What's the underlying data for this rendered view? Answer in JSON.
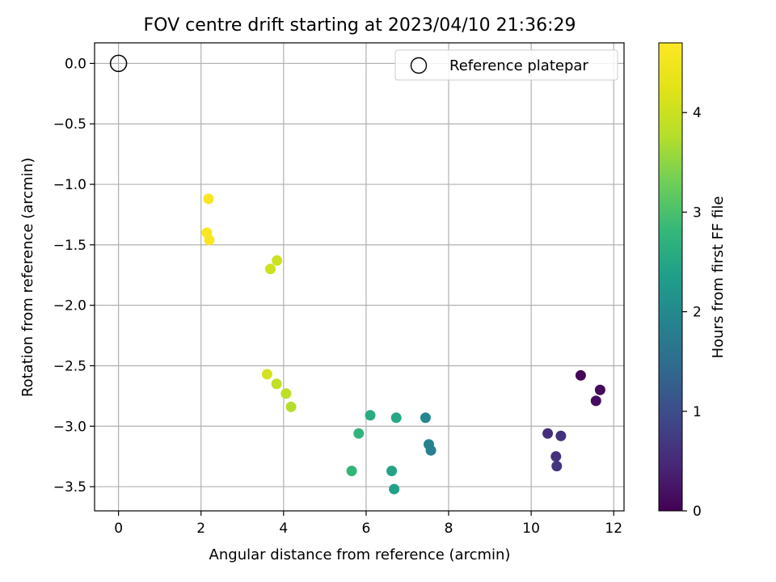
{
  "chart_data": {
    "type": "scatter",
    "title": "FOV centre drift starting at 2023/04/10 21:36:29",
    "xlabel": "Angular distance from reference (arcmin)",
    "ylabel": "Rotation from reference (arcmin)",
    "xlim": [
      -0.58,
      12.25
    ],
    "ylim": [
      -3.7,
      0.17
    ],
    "x_ticks": [
      0,
      2,
      4,
      6,
      8,
      10,
      12
    ],
    "y_ticks": [
      0.0,
      -0.5,
      -1.0,
      -1.5,
      -2.0,
      -2.5,
      -3.0,
      -3.5
    ],
    "x_tick_labels": [
      "0",
      "2",
      "4",
      "6",
      "8",
      "10",
      "12"
    ],
    "y_tick_labels": [
      "0.0",
      "−0.5",
      "−1.0",
      "−1.5",
      "−2.0",
      "−2.5",
      "−3.0",
      "−3.5"
    ],
    "grid": true,
    "colormap": "viridis",
    "colorbar": {
      "label": "Hours from first FF file",
      "range": [
        0,
        4.7
      ],
      "ticks": [
        0,
        1,
        2,
        3,
        4
      ],
      "tick_labels": [
        "0",
        "1",
        "2",
        "3",
        "4"
      ]
    },
    "reference": {
      "name": "Reference platepar",
      "x": 0,
      "y": 0
    },
    "legend": {
      "placement": "top-right",
      "entries": [
        "Reference platepar"
      ]
    },
    "points": [
      {
        "x": 11.2,
        "y": -2.58,
        "hours": 0.05
      },
      {
        "x": 11.67,
        "y": -2.7,
        "hours": 0.1
      },
      {
        "x": 11.57,
        "y": -2.79,
        "hours": 0.15
      },
      {
        "x": 10.4,
        "y": -3.06,
        "hours": 0.55
      },
      {
        "x": 10.72,
        "y": -3.08,
        "hours": 0.6
      },
      {
        "x": 10.6,
        "y": -3.25,
        "hours": 0.6
      },
      {
        "x": 10.62,
        "y": -3.33,
        "hours": 0.65
      },
      {
        "x": 7.44,
        "y": -2.93,
        "hours": 1.95
      },
      {
        "x": 7.52,
        "y": -3.15,
        "hours": 1.9
      },
      {
        "x": 7.57,
        "y": -3.2,
        "hours": 1.85
      },
      {
        "x": 6.1,
        "y": -2.91,
        "hours": 2.6
      },
      {
        "x": 6.73,
        "y": -2.93,
        "hours": 2.5
      },
      {
        "x": 5.82,
        "y": -3.06,
        "hours": 2.75
      },
      {
        "x": 5.65,
        "y": -3.37,
        "hours": 2.8
      },
      {
        "x": 6.62,
        "y": -3.37,
        "hours": 2.45
      },
      {
        "x": 6.68,
        "y": -3.52,
        "hours": 2.4
      },
      {
        "x": 3.6,
        "y": -2.57,
        "hours": 4.1
      },
      {
        "x": 3.83,
        "y": -2.65,
        "hours": 3.9
      },
      {
        "x": 4.06,
        "y": -2.73,
        "hours": 3.85
      },
      {
        "x": 4.18,
        "y": -2.84,
        "hours": 3.75
      },
      {
        "x": 3.68,
        "y": -1.7,
        "hours": 4.0
      },
      {
        "x": 3.84,
        "y": -1.63,
        "hours": 4.0
      },
      {
        "x": 2.18,
        "y": -1.12,
        "hours": 4.6
      },
      {
        "x": 2.14,
        "y": -1.4,
        "hours": 4.62
      },
      {
        "x": 2.2,
        "y": -1.46,
        "hours": 4.65
      }
    ]
  }
}
